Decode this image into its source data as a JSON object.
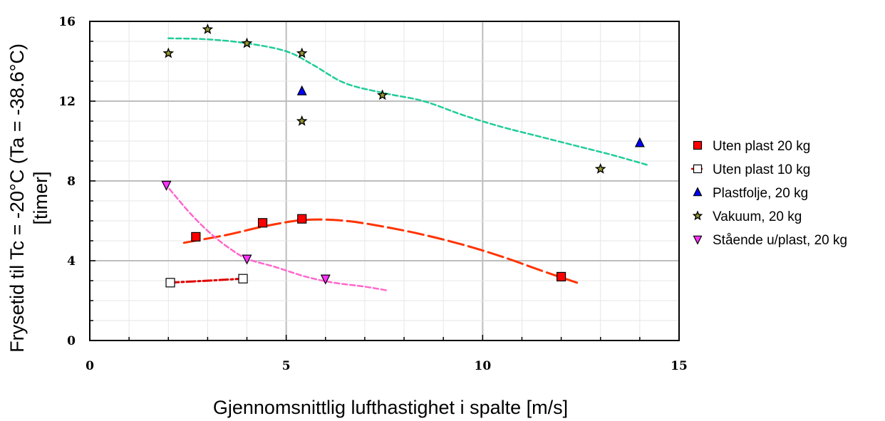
{
  "chart_data": {
    "type": "scatter",
    "xlabel": "Gjennomsnittlig lufthastighet i spalte  [m/s]",
    "ylabel_lines": [
      "Frysetid til Tc = -20°C (Ta = -38.6°C)",
      "[timer]"
    ],
    "xlim": [
      0,
      15
    ],
    "ylim": [
      0,
      16
    ],
    "xticks": [
      0,
      5,
      10,
      15
    ],
    "yticks": [
      0,
      4,
      8,
      12,
      16
    ],
    "grid": true,
    "legend_position": "right",
    "series": [
      {
        "name": "Uten plast 20 kg",
        "marker": "square",
        "fill": "#ff0000",
        "points": [
          [
            2.7,
            5.2
          ],
          [
            4.4,
            5.9
          ],
          [
            5.4,
            6.1
          ],
          [
            12.0,
            3.2
          ]
        ],
        "trend": {
          "color": "#ff3300",
          "dash": "22 7",
          "width": 3,
          "points": [
            [
              2.4,
              4.9
            ],
            [
              3.5,
              5.3
            ],
            [
              4.5,
              5.75
            ],
            [
              5.5,
              6.05
            ],
            [
              6.5,
              6.0
            ],
            [
              7.5,
              5.7
            ],
            [
              8.5,
              5.3
            ],
            [
              9.5,
              4.8
            ],
            [
              10.5,
              4.2
            ],
            [
              11.5,
              3.5
            ],
            [
              12.4,
              2.9
            ]
          ]
        }
      },
      {
        "name": "Uten plast 10 kg",
        "marker": "square",
        "fill": "#ffffff",
        "points": [
          [
            2.05,
            2.9
          ],
          [
            3.9,
            3.1
          ]
        ],
        "trend": {
          "color": "#e00000",
          "dash": "12 4 3 4",
          "width": 3,
          "points": [
            [
              2.05,
              2.9
            ],
            [
              3.0,
              3.0
            ],
            [
              3.9,
              3.1
            ]
          ]
        }
      },
      {
        "name": "Plastfolje, 20 kg",
        "marker": "triangle-up",
        "fill": "#0000ff",
        "points": [
          [
            5.4,
            12.5
          ],
          [
            14.0,
            9.9
          ]
        ]
      },
      {
        "name": "Vakuum, 20 kg",
        "marker": "star",
        "fill": "#999933",
        "points": [
          [
            2.0,
            14.4
          ],
          [
            3.0,
            15.6
          ],
          [
            4.0,
            14.9
          ],
          [
            5.4,
            14.4
          ],
          [
            5.4,
            11.0
          ],
          [
            7.45,
            12.3
          ],
          [
            13.0,
            8.6
          ]
        ],
        "trend": {
          "color": "#22cc99",
          "dash": "7 4",
          "width": 2.5,
          "points": [
            [
              2.0,
              15.15
            ],
            [
              3.0,
              15.1
            ],
            [
              4.0,
              14.9
            ],
            [
              5.0,
              14.5
            ],
            [
              5.7,
              13.8
            ],
            [
              6.5,
              12.9
            ],
            [
              7.5,
              12.4
            ],
            [
              8.5,
              12.0
            ],
            [
              9.5,
              11.3
            ],
            [
              10.5,
              10.7
            ],
            [
              11.5,
              10.2
            ],
            [
              12.5,
              9.7
            ],
            [
              13.3,
              9.3
            ],
            [
              14.2,
              8.8
            ]
          ]
        }
      },
      {
        "name": "Stående u/plast, 20 kg",
        "marker": "triangle-down",
        "fill": "#ff33ff",
        "points": [
          [
            1.95,
            7.8
          ],
          [
            4.0,
            4.1
          ],
          [
            6.0,
            3.1
          ]
        ],
        "trend": {
          "color": "#ff66cc",
          "dash": "7 4",
          "width": 2.5,
          "points": [
            [
              1.9,
              7.9
            ],
            [
              2.5,
              6.5
            ],
            [
              3.0,
              5.5
            ],
            [
              3.5,
              4.7
            ],
            [
              4.0,
              4.1
            ],
            [
              4.7,
              3.7
            ],
            [
              5.5,
              3.2
            ],
            [
              6.2,
              2.9
            ],
            [
              7.0,
              2.7
            ],
            [
              7.6,
              2.5
            ]
          ]
        }
      }
    ]
  }
}
